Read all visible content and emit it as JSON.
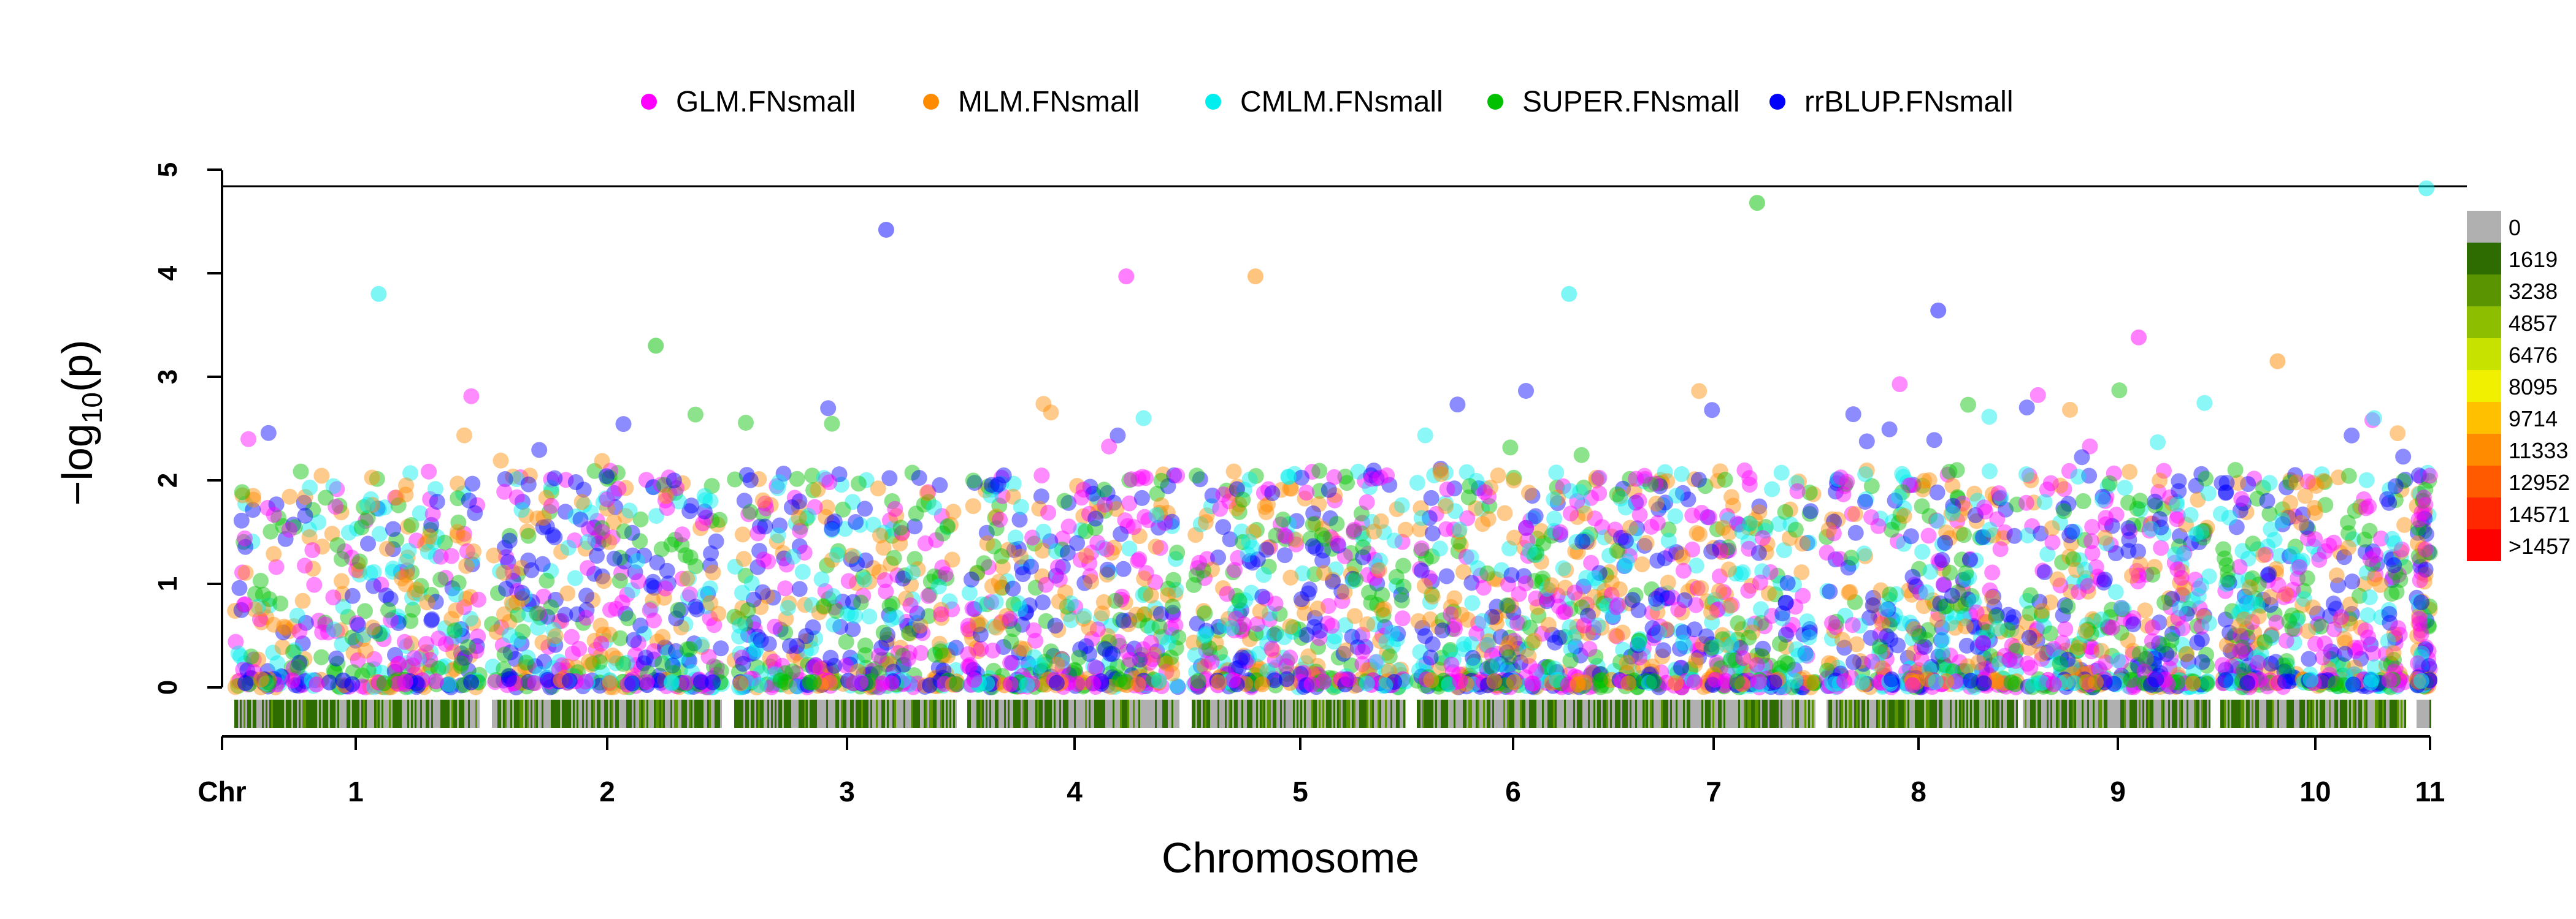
{
  "chart_data": {
    "type": "scatter",
    "title": "",
    "xlabel": "Chromosome",
    "ylabel_prefix": "−log",
    "ylabel_sub": "10",
    "ylabel_suffix": "(p)",
    "ylim": [
      0,
      5
    ],
    "y_ticks": [
      "0",
      "1",
      "2",
      "3",
      "4",
      "5"
    ],
    "chr_axis_label": "Chr",
    "chromosomes": [
      "1",
      "2",
      "3",
      "4",
      "5",
      "6",
      "7",
      "8",
      "9",
      "10",
      "11"
    ],
    "threshold": 4.84,
    "grid": false,
    "legend_position": "top",
    "series": [
      {
        "name": "GLM.FNsmall",
        "color": "#ff00ff"
      },
      {
        "name": "MLM.FNsmall",
        "color": "#ff8c00"
      },
      {
        "name": "CMLM.FNsmall",
        "color": "#00eeee"
      },
      {
        "name": "SUPER.FNsmall",
        "color": "#00c000"
      },
      {
        "name": "rrBLUP.FNsmall",
        "color": "#0000ff"
      }
    ],
    "peaks": [
      {
        "chromosome": "1",
        "value": 3.8
      },
      {
        "chromosome": "2",
        "value": 3.3
      },
      {
        "chromosome": "3",
        "value": 4.42
      },
      {
        "chromosome": "4",
        "value": 3.97
      },
      {
        "chromosome": "5",
        "value": 3.97
      },
      {
        "chromosome": "6",
        "value": 3.8
      },
      {
        "chromosome": "7",
        "value": 4.68
      },
      {
        "chromosome": "8",
        "value": 3.64
      },
      {
        "chromosome": "9",
        "value": 3.38
      },
      {
        "chromosome": "10",
        "value": 3.15
      },
      {
        "chromosome": "11",
        "value": 4.82
      }
    ],
    "density_legend": {
      "labels": [
        "0",
        "1619",
        "3238",
        "4857",
        "6476",
        "8095",
        "9714",
        "11333",
        "12952",
        "14571",
        ">1457"
      ],
      "colors": [
        "#b0b0b0",
        "#2e6b00",
        "#5a9400",
        "#8ebe00",
        "#c8e200",
        "#f0f000",
        "#ffc000",
        "#ff8c00",
        "#ff5a00",
        "#ff2800",
        "#ff0000"
      ]
    }
  }
}
